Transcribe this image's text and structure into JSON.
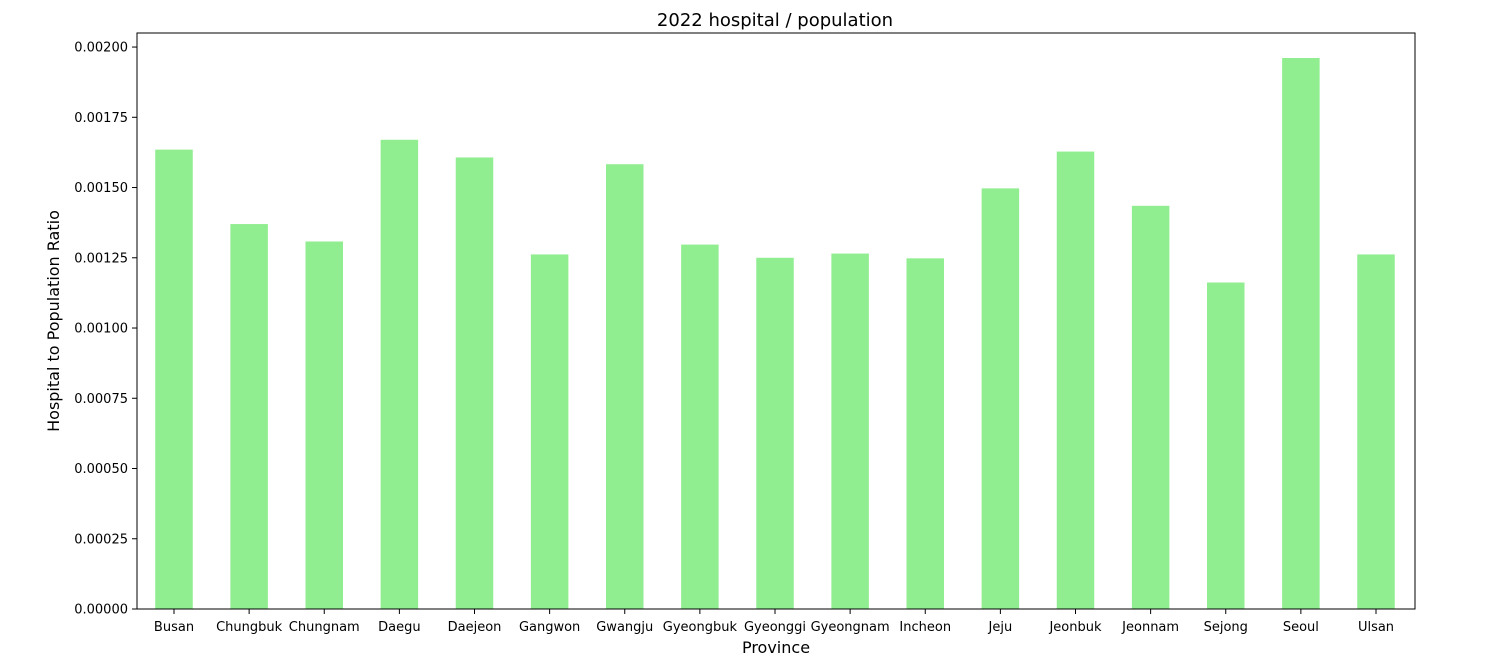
{
  "chart_data": {
    "type": "bar",
    "title": "2022 hospital / population",
    "xlabel": "Province",
    "ylabel": "Hospital to Population Ratio",
    "categories": [
      "Busan",
      "Chungbuk",
      "Chungnam",
      "Daegu",
      "Daejeon",
      "Gangwon",
      "Gwangju",
      "Gyeongbuk",
      "Gyeonggi",
      "Gyeongnam",
      "Incheon",
      "Jeju",
      "Jeonbuk",
      "Jeonnam",
      "Sejong",
      "Seoul",
      "Ulsan"
    ],
    "values": [
      0.001635,
      0.00137,
      0.001308,
      0.00167,
      0.001607,
      0.001262,
      0.001583,
      0.001297,
      0.00125,
      0.001265,
      0.001248,
      0.001497,
      0.001628,
      0.001435,
      0.001162,
      0.001961,
      0.001262
    ],
    "ylim": [
      0,
      0.00205
    ],
    "yticks": [
      "0.00000",
      "0.00025",
      "0.00050",
      "0.00075",
      "0.00100",
      "0.00125",
      "0.00150",
      "0.00175",
      "0.00200"
    ],
    "bar_color": "#90ee90",
    "grid": false,
    "legend": "none"
  }
}
